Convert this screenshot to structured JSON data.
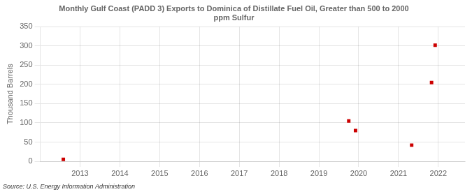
{
  "chart_data": {
    "type": "scatter",
    "title": "Monthly Gulf Coast (PADD 3) Exports to Dominica of Distillate Fuel Oil, Greater than 500 to 2000\nppm Sulfur",
    "ylabel": "Thousand Barrels",
    "source": "Source: U.S. Energy Information Administration",
    "x": [
      2012.58,
      2019.75,
      2019.92,
      2021.33,
      2021.83,
      2021.92
    ],
    "values": [
      5,
      105,
      80,
      42,
      205,
      302
    ],
    "color": "#cc0000",
    "marker": "square",
    "xlim": [
      2012.0,
      2022.67
    ],
    "xticks": [
      2013,
      2014,
      2015,
      2016,
      2017,
      2018,
      2019,
      2020,
      2021,
      2022
    ],
    "ylim": [
      0,
      350
    ],
    "yticks": [
      0,
      50,
      100,
      150,
      200,
      250,
      300,
      350
    ],
    "grid": true
  }
}
